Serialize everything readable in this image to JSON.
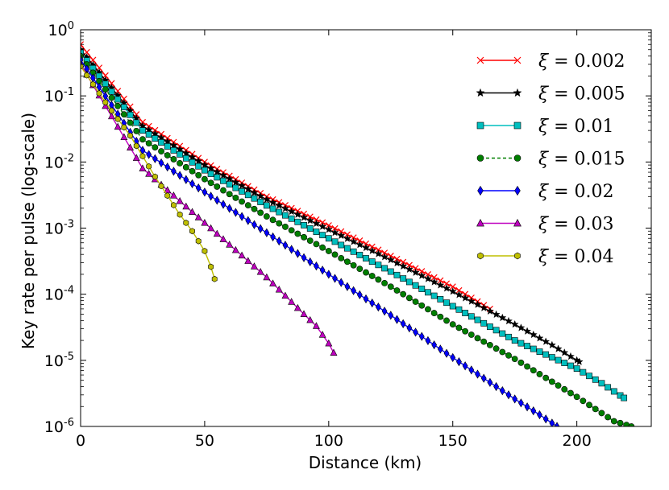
{
  "chart_data": {
    "type": "line",
    "title": "",
    "xlabel": "Distance (km)",
    "ylabel": "Key rate per pulse (log-scale)",
    "xlim": [
      0,
      230
    ],
    "ylim": [
      1e-06,
      1
    ],
    "yscale": "log",
    "xticks": [
      0,
      50,
      100,
      150,
      200
    ],
    "xtick_labels": [
      "0",
      "50",
      "100",
      "150",
      "200"
    ],
    "yticks": [
      1,
      0.1,
      0.01,
      0.001,
      0.0001,
      1e-05,
      1e-06
    ],
    "ytick_bases": [
      "10",
      "10",
      "10",
      "10",
      "10",
      "10",
      "10"
    ],
    "ytick_exps": [
      "0",
      "-1",
      "-2",
      "-3",
      "-4",
      "-5",
      "-6"
    ],
    "legend_position": "top-right",
    "legend_symbol": "ξ",
    "legend_eq": " = ",
    "series": [
      {
        "name": "ξ = 0.002",
        "label_value": "0.002",
        "color": "#ff0000",
        "marker": "x",
        "linestyle": "solid",
        "x": [
          0,
          25,
          50,
          75,
          100,
          125,
          150,
          165
        ],
        "y": [
          0.6,
          0.04,
          0.01,
          0.003,
          0.0011,
          0.00038,
          0.00013,
          6e-05
        ]
      },
      {
        "name": "ξ = 0.005",
        "label_value": "0.005",
        "color": "#000000",
        "marker": "star",
        "linestyle": "solid",
        "x": [
          0,
          25,
          50,
          75,
          100,
          125,
          150,
          175,
          190,
          201
        ],
        "y": [
          0.5,
          0.035,
          0.009,
          0.0027,
          0.00095,
          0.00033,
          0.00011,
          3.5e-05,
          1.7e-05,
          9.5e-06
        ]
      },
      {
        "name": "ξ = 0.01",
        "label_value": "0.01",
        "color": "#00bfbf",
        "marker": "square",
        "linestyle": "solid",
        "x": [
          0,
          25,
          50,
          75,
          100,
          125,
          150,
          175,
          200,
          210,
          219
        ],
        "y": [
          0.45,
          0.03,
          0.0075,
          0.0022,
          0.0007,
          0.00022,
          6.6e-05,
          2e-05,
          7.5e-06,
          4.5e-06,
          2.7e-06
        ]
      },
      {
        "name": "ξ = 0.015",
        "label_value": "0.015",
        "color": "#007f00",
        "marker": "circle",
        "linestyle": "dashed",
        "x": [
          0,
          25,
          50,
          75,
          100,
          125,
          150,
          175,
          200,
          215,
          222
        ],
        "y": [
          0.4,
          0.022,
          0.0055,
          0.0015,
          0.00045,
          0.00013,
          3.5e-05,
          1.05e-05,
          2.8e-06,
          1.2e-06,
          1e-06
        ]
      },
      {
        "name": "ξ = 0.02",
        "label_value": "0.02",
        "color": "#0000ff",
        "marker": "diamond",
        "linestyle": "solid",
        "x": [
          0,
          25,
          50,
          75,
          100,
          125,
          150,
          175,
          185,
          192
        ],
        "y": [
          0.35,
          0.015,
          0.0035,
          0.00085,
          0.0002,
          4.8e-05,
          1.1e-05,
          2.6e-06,
          1.5e-06,
          1e-06
        ]
      },
      {
        "name": "ξ = 0.03",
        "label_value": "0.03",
        "color": "#bf00bf",
        "marker": "triangle",
        "linestyle": "solid",
        "x": [
          0,
          25,
          50,
          75,
          90,
          95,
          100,
          102
        ],
        "y": [
          0.3,
          0.008,
          0.0012,
          0.00018,
          5e-05,
          3.3e-05,
          1.8e-05,
          1.3e-05
        ]
      },
      {
        "name": "ξ = 0.04",
        "label_value": "0.04",
        "color": "#bfbf00",
        "marker": "hexagon",
        "linestyle": "solid",
        "x": [
          0,
          10,
          20,
          30,
          40,
          45,
          50,
          52,
          54
        ],
        "y": [
          0.28,
          0.08,
          0.025,
          0.006,
          0.0016,
          0.0009,
          0.00045,
          0.0003,
          0.00017
        ]
      }
    ]
  }
}
